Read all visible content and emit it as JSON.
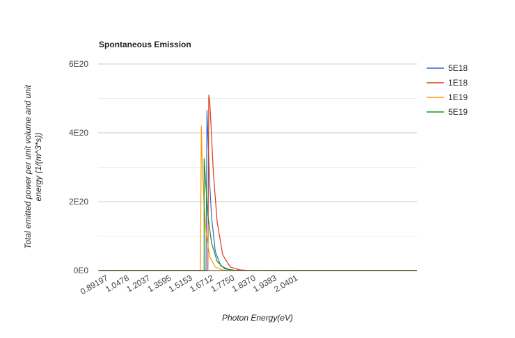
{
  "chart_data": {
    "type": "line",
    "title": "Spontaneous Emission",
    "xlabel": "Photon Energy(eV)",
    "ylabel_lines": [
      "Total emitted power per unit volume and unit",
      "energy (1/(m^3*s))"
    ],
    "x_tick_labels": [
      "0.89197",
      "1.0478",
      "1.2037",
      "1.3595",
      "1.5153",
      "1.6712",
      "1.7750",
      "1.8370",
      "1.9383",
      "2.0401"
    ],
    "y_tick_labels": [
      "0E0",
      "2E20",
      "4E20",
      "6E20"
    ],
    "ylim": [
      0,
      6e+20
    ],
    "grid": true,
    "legend_position": "right",
    "series": [
      {
        "name": "5E18",
        "color": "#3366cc",
        "points": [
          [
            0.9,
            0
          ],
          [
            1.38,
            0
          ],
          [
            1.4,
            0
          ],
          [
            1.45,
            0
          ],
          [
            1.47,
            0
          ],
          [
            1.4751,
            4.65e+20
          ],
          [
            1.48,
            3.9e+20
          ],
          [
            1.49,
            2.5e+20
          ],
          [
            1.5,
            1.55e+20
          ],
          [
            1.52,
            5.5e+19
          ],
          [
            1.55,
            1.3e+19
          ],
          [
            1.6,
            1.5e+18
          ],
          [
            1.65,
            2e+17
          ],
          [
            2.0,
            0
          ],
          [
            2.6,
            0
          ]
        ]
      },
      {
        "name": "1E18",
        "color": "#dc3912",
        "points": [
          [
            0.9,
            0
          ],
          [
            1.4,
            0
          ],
          [
            1.47,
            0
          ],
          [
            1.48,
            0
          ],
          [
            1.4851,
            5.1e+20
          ],
          [
            1.49,
            4.9e+20
          ],
          [
            1.5,
            3.9e+20
          ],
          [
            1.51,
            2.8e+20
          ],
          [
            1.53,
            1.4e+20
          ],
          [
            1.56,
            4.5e+19
          ],
          [
            1.6,
            1e+19
          ],
          [
            1.65,
            2e+18
          ],
          [
            1.7,
            2e+17
          ],
          [
            2.0,
            0
          ],
          [
            2.6,
            0
          ]
        ]
      },
      {
        "name": "1E19",
        "color": "#ff9900",
        "points": [
          [
            0.9,
            0
          ],
          [
            1.4,
            0
          ],
          [
            1.44,
            0
          ],
          [
            1.4451,
            4.2e+20
          ],
          [
            1.45,
            3.1e+20
          ],
          [
            1.46,
            1.9e+20
          ],
          [
            1.47,
            1.1e+20
          ],
          [
            1.49,
            4e+19
          ],
          [
            1.52,
            1e+19
          ],
          [
            1.56,
            1.5e+18
          ],
          [
            1.62,
            1e+17
          ],
          [
            2.0,
            0
          ],
          [
            2.6,
            0
          ]
        ]
      },
      {
        "name": "5E19",
        "color": "#109618",
        "points": [
          [
            0.9,
            0
          ],
          [
            1.4,
            0
          ],
          [
            1.45,
            0
          ],
          [
            1.46,
            0
          ],
          [
            1.4601,
            3.25e+20
          ],
          [
            1.47,
            2.4e+20
          ],
          [
            1.48,
            1.6e+20
          ],
          [
            1.5,
            8e+19
          ],
          [
            1.53,
            2.6e+19
          ],
          [
            1.57,
            5e+18
          ],
          [
            1.63,
            4e+17
          ],
          [
            2.0,
            0
          ],
          [
            2.6,
            0
          ]
        ]
      }
    ]
  }
}
